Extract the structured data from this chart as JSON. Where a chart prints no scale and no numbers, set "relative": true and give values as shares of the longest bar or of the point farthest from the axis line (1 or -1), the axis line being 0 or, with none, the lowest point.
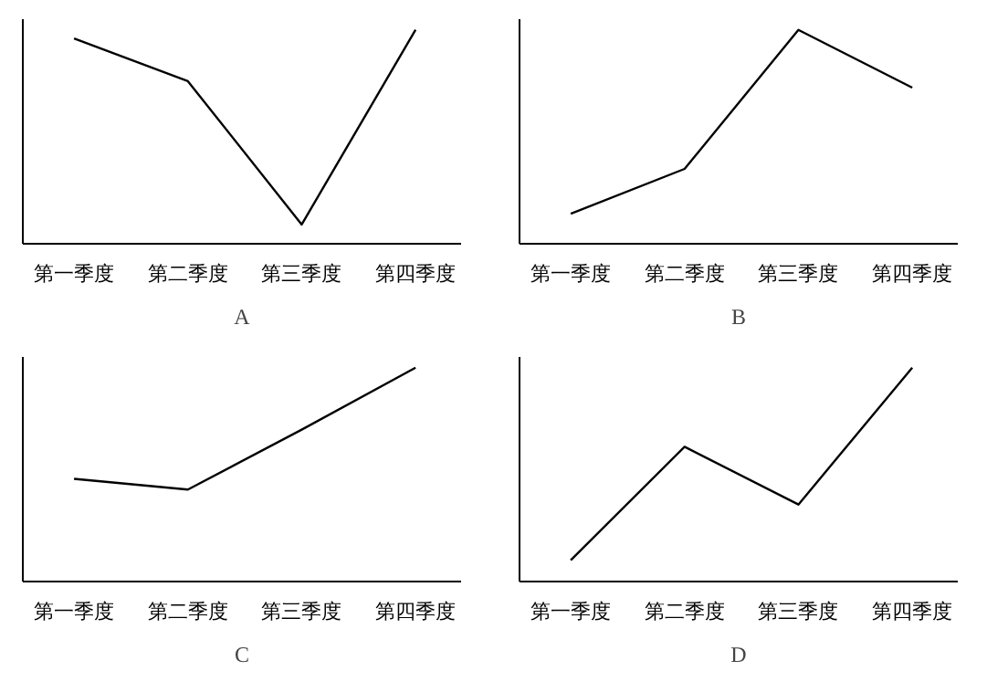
{
  "chart_data": [
    {
      "type": "line",
      "title": "A",
      "categories": [
        "第一季度",
        "第二季度",
        "第三季度",
        "第四季度"
      ],
      "relative": true,
      "grid": false,
      "series": [
        {
          "color": "#000000",
          "values": [
            0.96,
            0.76,
            0.09,
            1
          ]
        }
      ]
    },
    {
      "type": "line",
      "title": "B",
      "categories": [
        "第一季度",
        "第二季度",
        "第三季度",
        "第四季度"
      ],
      "relative": true,
      "grid": false,
      "series": [
        {
          "color": "#000000",
          "values": [
            0.14,
            0.35,
            1,
            0.73
          ]
        }
      ]
    },
    {
      "type": "line",
      "title": "C",
      "categories": [
        "第一季度",
        "第二季度",
        "第三季度",
        "第四季度"
      ],
      "relative": true,
      "grid": false,
      "series": [
        {
          "color": "#000000",
          "values": [
            0.48,
            0.43,
            0.71,
            1
          ]
        }
      ]
    },
    {
      "type": "line",
      "title": "D",
      "categories": [
        "第一季度",
        "第二季度",
        "第三季度",
        "第四季度"
      ],
      "relative": true,
      "grid": false,
      "series": [
        {
          "color": "#000000",
          "values": [
            0.1,
            0.63,
            0.36,
            1
          ]
        }
      ]
    }
  ]
}
